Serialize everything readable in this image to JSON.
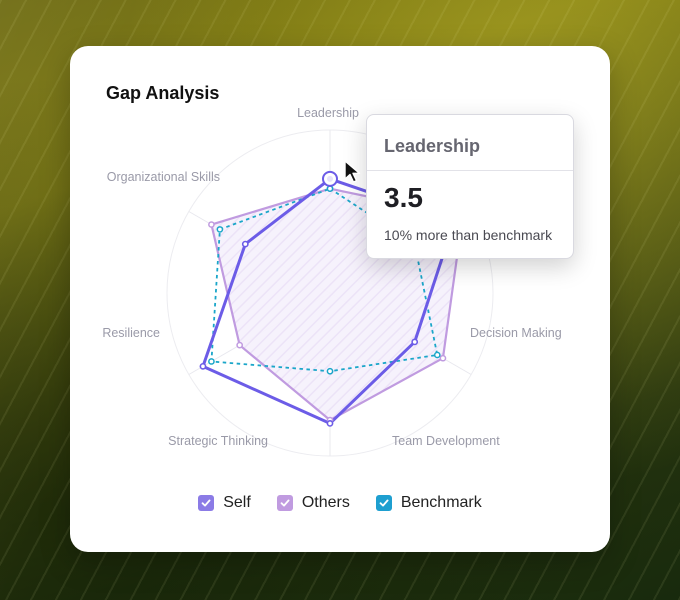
{
  "card": {
    "title": "Gap Analysis"
  },
  "chart_data": {
    "type": "radar",
    "title": "Gap Analysis",
    "axes": [
      "Leadership",
      "Decision Making",
      "Team Development",
      "Strategic Thinking",
      "Resilience",
      "Organizational Skills"
    ],
    "rmax": 5,
    "series": [
      {
        "name": "Self",
        "values": [
          3.5,
          4.4,
          3.0,
          4.0,
          4.5,
          3.0
        ],
        "color": "#6c5ce7",
        "style": "solid-thick"
      },
      {
        "name": "Others",
        "values": [
          3.2,
          4.7,
          4.0,
          3.9,
          3.2,
          4.2
        ],
        "color": "#c09be0",
        "style": "solid",
        "fill": true
      },
      {
        "name": "Benchmark",
        "values": [
          3.2,
          3.0,
          3.8,
          2.4,
          4.2,
          3.9
        ],
        "color": "#1aa6c9",
        "style": "dashed"
      }
    ],
    "highlight": {
      "axis": "Leadership",
      "series": "Self"
    }
  },
  "legend": [
    {
      "label": "Self",
      "color": "#8b7be6"
    },
    {
      "label": "Others",
      "color": "#c09be0"
    },
    {
      "label": "Benchmark",
      "color": "#1e9fd0"
    }
  ],
  "tooltip": {
    "title": "Leadership",
    "value": "3.5",
    "subtitle": "10% more than benchmark"
  }
}
